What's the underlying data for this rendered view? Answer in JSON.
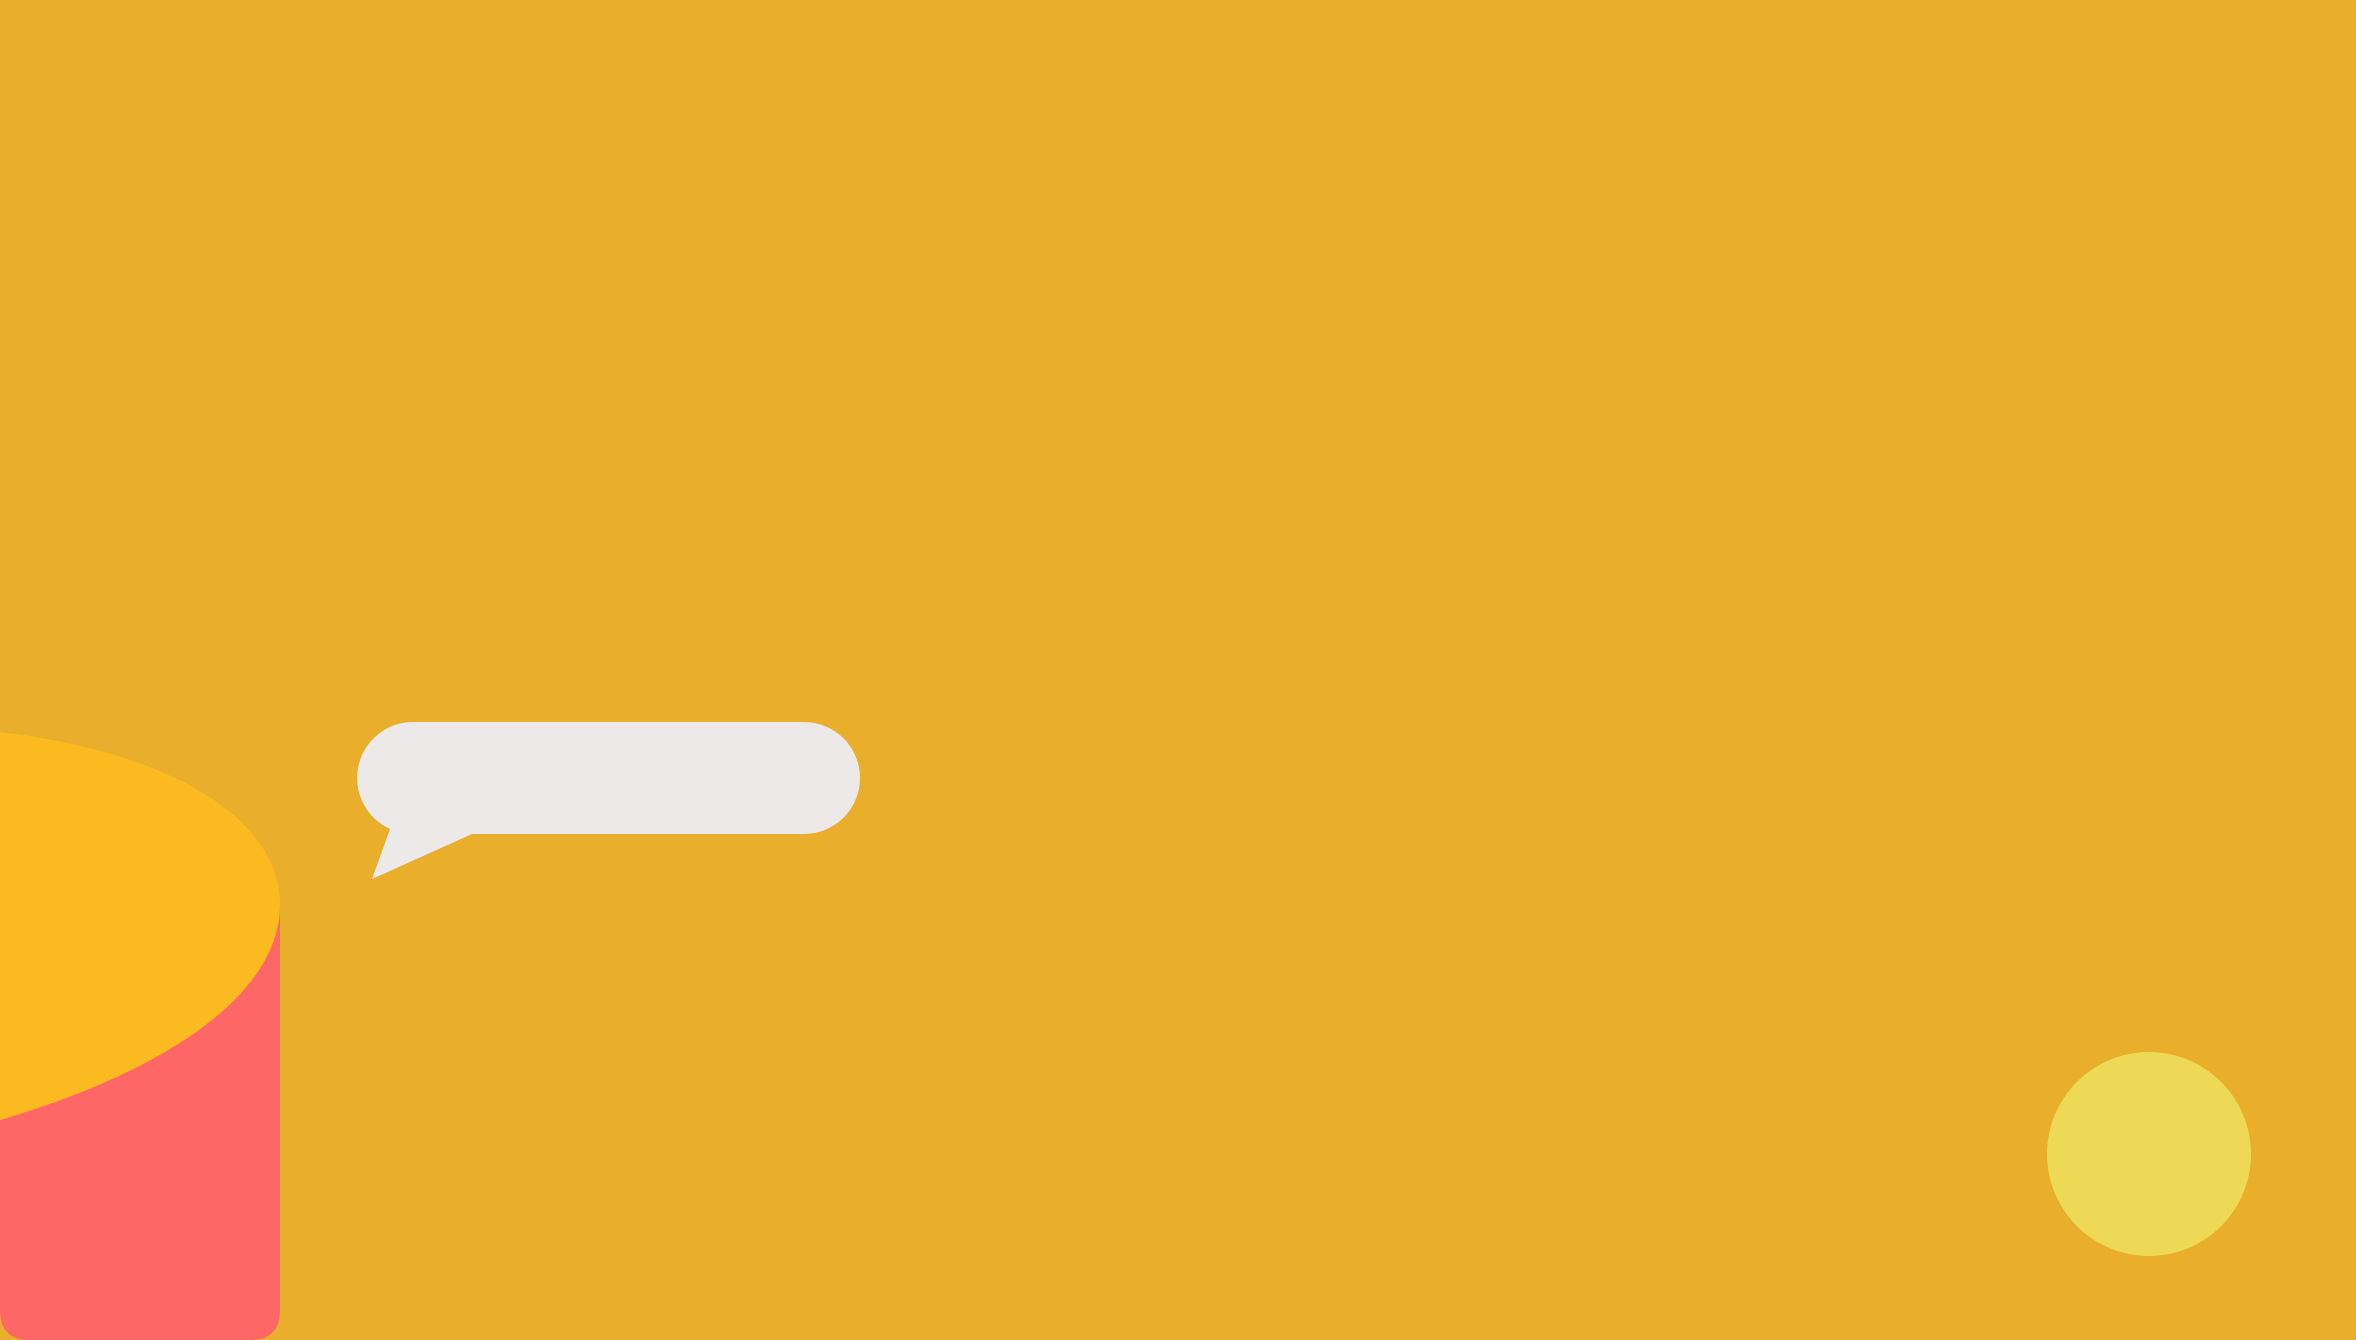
{
  "colors": {
    "background": "#E8AE2C",
    "cylinder_body": "#FF6666",
    "cylinder_top": "#FBBA1F",
    "speech_bubble": "#EDE9E9",
    "circle_button": "#EDD955"
  },
  "speech_bubble": {
    "text": ""
  },
  "icons": {
    "cylinder": "cylinder-shape-icon",
    "speech_bubble": "speech-bubble-icon",
    "circle": "circle-button-icon"
  }
}
